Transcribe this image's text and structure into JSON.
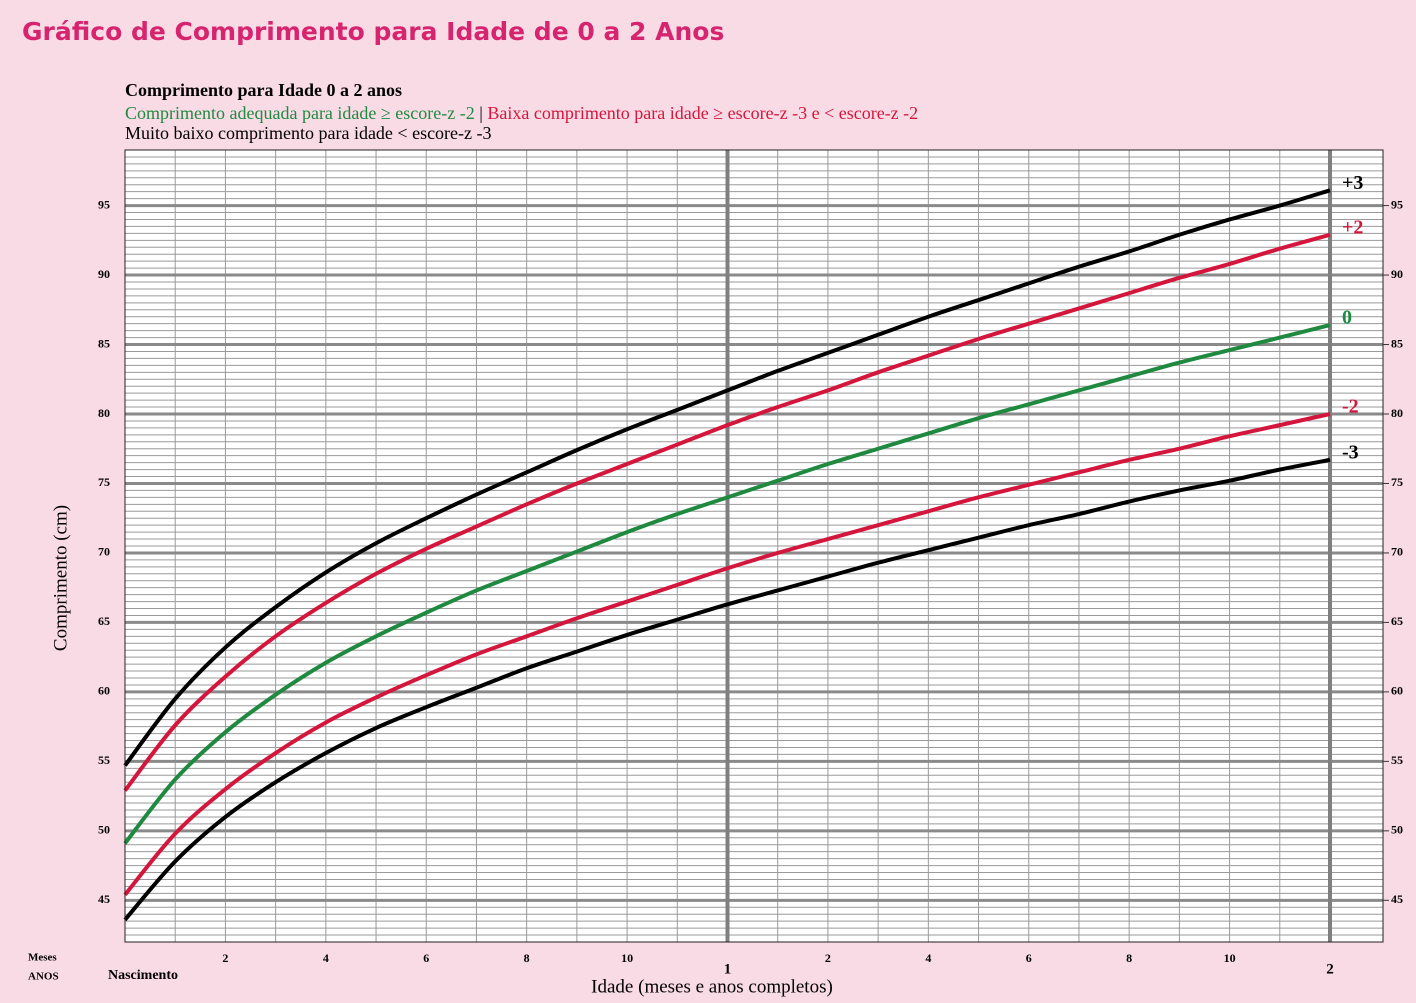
{
  "page_title": "Gráfico de Comprimento para Idade de 0 a 2 Anos",
  "chart_data": {
    "type": "line",
    "title": "Comprimento para Idade 0 a 2 anos",
    "notes": [
      [
        {
          "text": "Comprimento adequada para idade ≥ escore-z -2",
          "color": "#1f8a3f"
        },
        {
          "text": " | ",
          "color": "#000000"
        },
        {
          "text": "Baixa comprimento para idade ≥ escore-z -3 e < escore-z -2",
          "color": "#d4163c"
        }
      ],
      [
        {
          "text": "Muito baixo comprimento para idade < escore-z -3",
          "color": "#000000"
        }
      ]
    ],
    "y_label": "Comprimento (cm)",
    "x_label": "Idade (meses e anos completos)",
    "month_row_label": "Meses",
    "year_row_label": "ANOS",
    "birth_label": "Nascimento",
    "x": [
      0,
      1,
      2,
      3,
      4,
      5,
      6,
      7,
      8,
      9,
      10,
      11,
      12,
      13,
      14,
      15,
      16,
      17,
      18,
      19,
      20,
      21,
      22,
      23,
      24
    ],
    "xlim": [
      0,
      24
    ],
    "xticks": [
      2,
      4,
      6,
      8,
      10,
      {
        "value": 14,
        "label": "2"
      },
      {
        "value": 16,
        "label": "4"
      },
      {
        "value": 18,
        "label": "6"
      },
      {
        "value": 20,
        "label": "8"
      },
      {
        "value": 22,
        "label": "10"
      }
    ],
    "year_ticks": [
      {
        "value": 12,
        "label": "1"
      },
      {
        "value": 24,
        "label": "2"
      }
    ],
    "ylim": [
      42,
      99
    ],
    "yticks": [
      45,
      50,
      55,
      60,
      65,
      70,
      75,
      80,
      85,
      90,
      95
    ],
    "grid": true,
    "grid_minor_step": 0.5,
    "x_grid_step": 1,
    "series": [
      {
        "name": "+3",
        "color": "#000000",
        "values": [
          54.7,
          59.5,
          63.2,
          66.1,
          68.6,
          70.7,
          72.5,
          74.2,
          75.8,
          77.4,
          78.9,
          80.3,
          81.7,
          83.1,
          84.4,
          85.7,
          87.0,
          88.2,
          89.4,
          90.6,
          91.7,
          92.9,
          94.0,
          95.0,
          96.1
        ]
      },
      {
        "name": "+2",
        "color": "#d4163c",
        "values": [
          52.9,
          57.6,
          61.1,
          64.0,
          66.4,
          68.5,
          70.3,
          71.9,
          73.5,
          75.0,
          76.4,
          77.8,
          79.2,
          80.5,
          81.7,
          83.0,
          84.2,
          85.4,
          86.5,
          87.6,
          88.7,
          89.8,
          90.8,
          91.9,
          92.9
        ]
      },
      {
        "name": "0",
        "color": "#1f8a3f",
        "values": [
          49.1,
          53.7,
          57.1,
          59.8,
          62.1,
          64.0,
          65.7,
          67.3,
          68.7,
          70.1,
          71.5,
          72.8,
          74.0,
          75.2,
          76.4,
          77.5,
          78.6,
          79.7,
          80.7,
          81.7,
          82.7,
          83.7,
          84.6,
          85.5,
          86.4
        ]
      },
      {
        "name": "-2",
        "color": "#d4163c",
        "values": [
          45.4,
          49.8,
          53.0,
          55.6,
          57.8,
          59.6,
          61.2,
          62.7,
          64.0,
          65.3,
          66.5,
          67.7,
          68.9,
          70.0,
          71.0,
          72.0,
          73.0,
          74.0,
          74.9,
          75.8,
          76.7,
          77.5,
          78.4,
          79.2,
          80.0
        ]
      },
      {
        "name": "-3",
        "color": "#000000",
        "values": [
          43.6,
          47.8,
          51.0,
          53.5,
          55.6,
          57.4,
          58.9,
          60.3,
          61.7,
          62.9,
          64.1,
          65.2,
          66.3,
          67.3,
          68.3,
          69.3,
          70.2,
          71.1,
          72.0,
          72.8,
          73.7,
          74.5,
          75.2,
          76.0,
          76.7
        ]
      }
    ]
  }
}
